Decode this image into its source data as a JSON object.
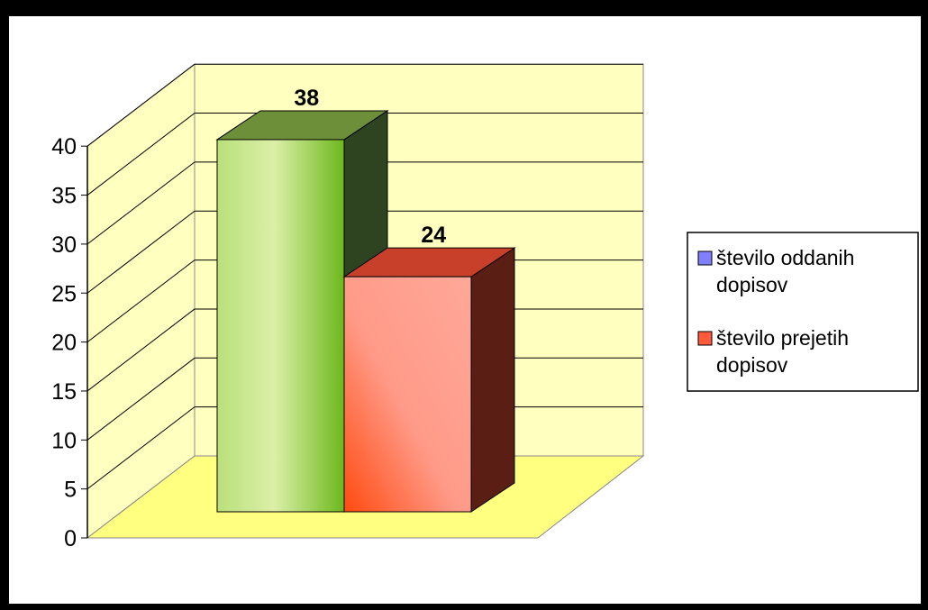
{
  "chart_data": {
    "type": "bar",
    "style": "3d-column",
    "categories": [
      ""
    ],
    "series": [
      {
        "name": "število oddanih dopisov",
        "values": [
          38
        ],
        "legend_color": "#8080ff",
        "bar_color": "#9ACD32"
      },
      {
        "name": "število prejetih dopisov",
        "values": [
          24
        ],
        "legend_color": "#ff5a3c",
        "bar_color": "#ff6b50"
      }
    ],
    "data_labels": [
      "38",
      "24"
    ],
    "title": "",
    "xlabel": "",
    "ylabel": "",
    "ylim": [
      0,
      40
    ],
    "yticks": [
      0,
      5,
      10,
      15,
      20,
      25,
      30,
      35,
      40
    ],
    "grid": true,
    "wall_color": "#ffffc0",
    "floor_color": "#ffff80",
    "legend_position": "right"
  }
}
